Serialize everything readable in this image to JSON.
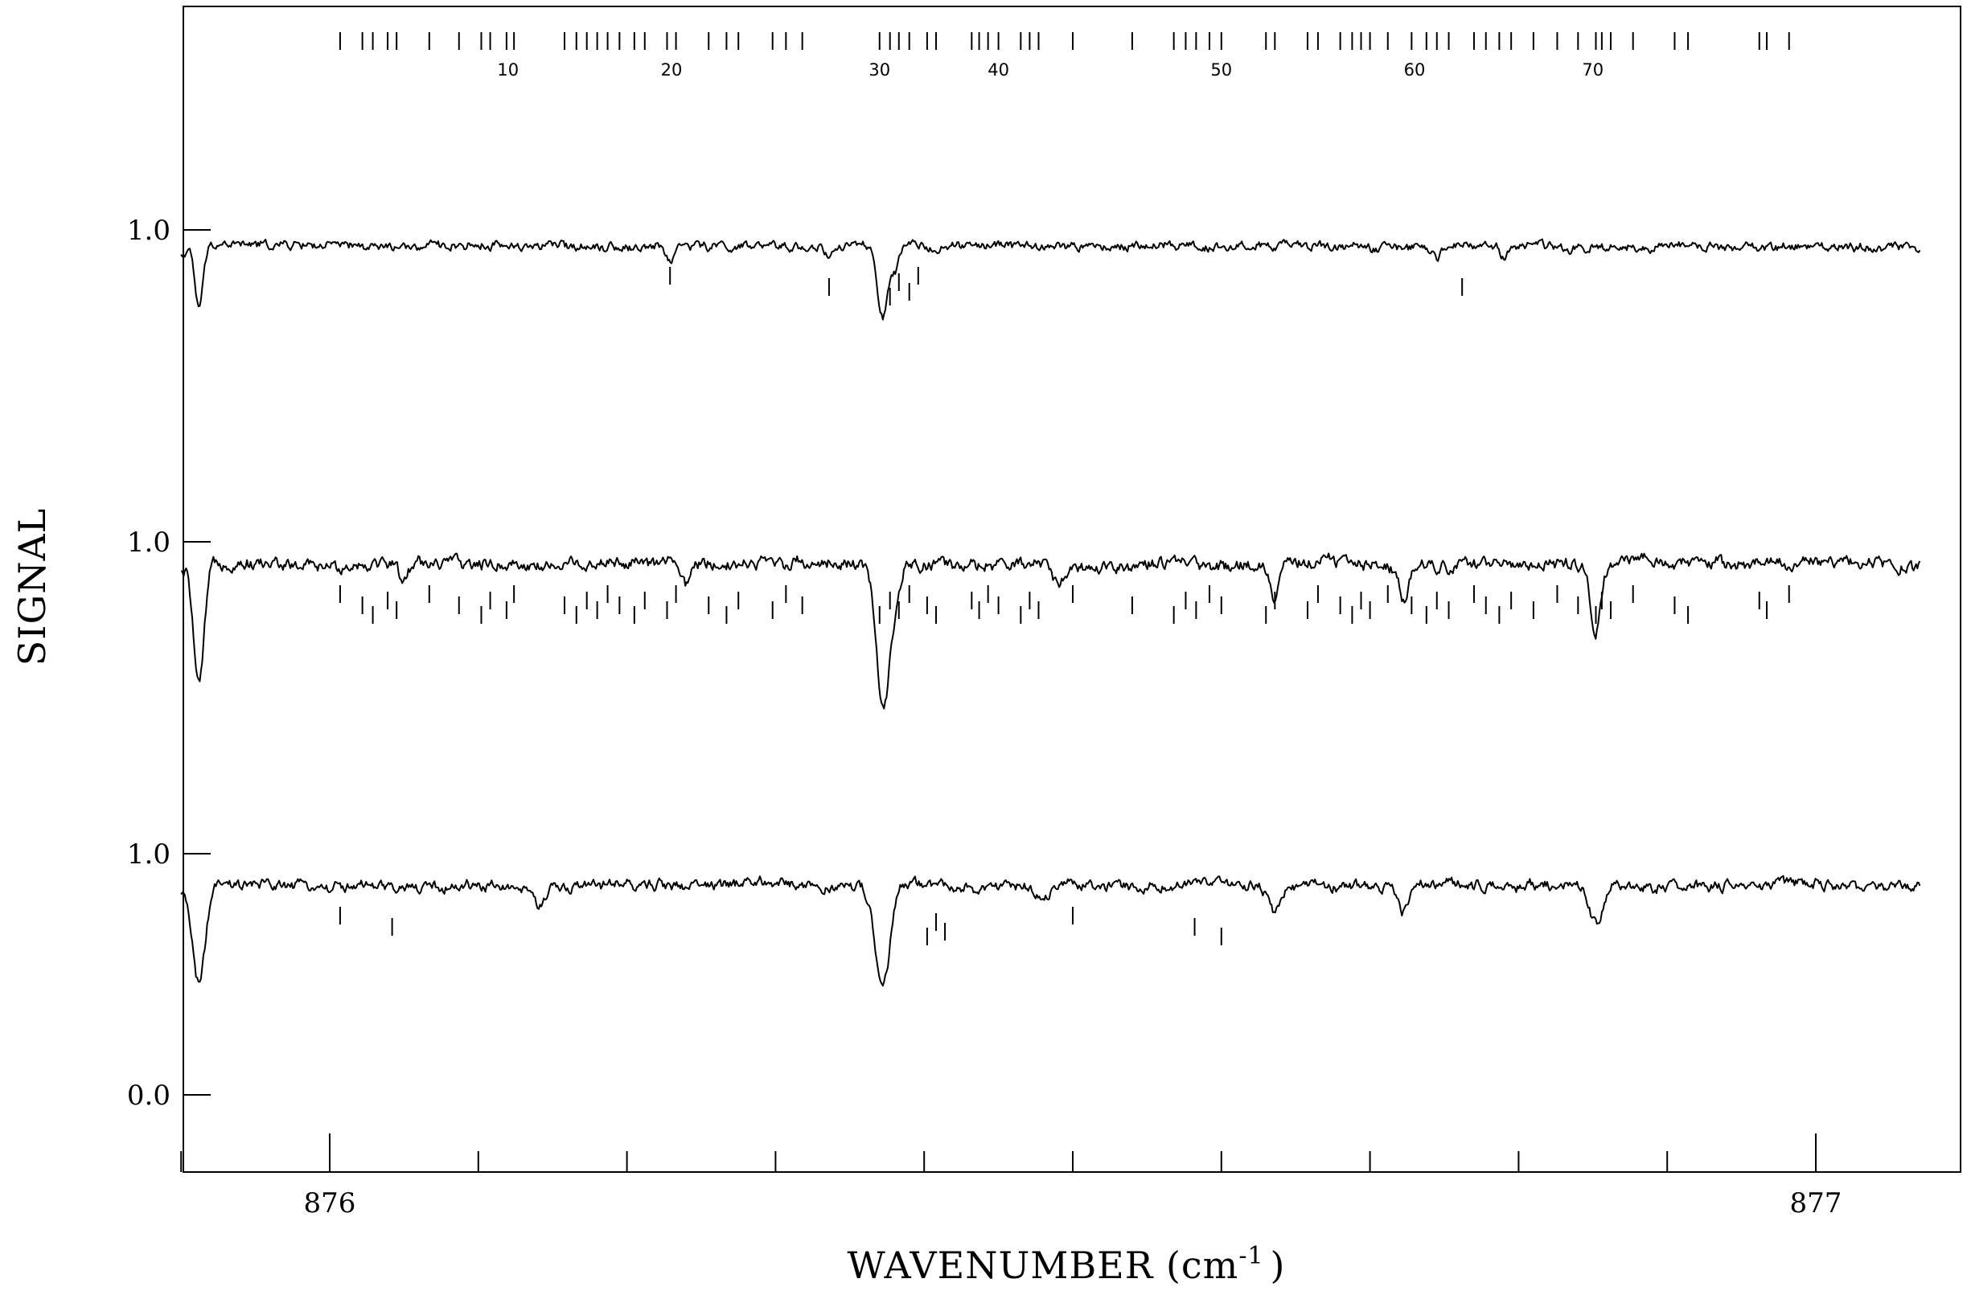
{
  "chart_data": {
    "type": "line",
    "xlabel": "WAVENUMBER (cm",
    "xlabel_sup": "-1",
    "xlabel_end": ")",
    "ylabel": "SIGNAL",
    "xlim": [
      875.85,
      877.1
    ],
    "x_ticks": [
      875.9,
      876.0,
      876.1,
      876.2,
      876.3,
      876.4,
      876.5,
      876.6,
      876.7,
      876.8,
      876.9,
      877.0
    ],
    "x_tick_labels": [
      {
        "value": 876.0,
        "label": "876"
      },
      {
        "value": 877.0,
        "label": "877"
      }
    ],
    "y_tick_labels": [
      {
        "label": "1.0",
        "offset": 3.7
      },
      {
        "label": "1.0",
        "offset": 2.69
      },
      {
        "label": "1.0",
        "offset": 1.72
      },
      {
        "label": "1.0",
        "offset": 0.75
      },
      {
        "label": "0.0",
        "offset": 0.0
      }
    ],
    "line_numbers": [
      {
        "n": 10,
        "x": 876.12
      },
      {
        "n": 20,
        "x": 876.23
      },
      {
        "n": 30,
        "x": 876.37
      },
      {
        "n": 40,
        "x": 876.45
      },
      {
        "n": 50,
        "x": 876.6
      },
      {
        "n": 60,
        "x": 876.73
      },
      {
        "n": 70,
        "x": 876.85
      }
    ],
    "series": [
      {
        "offset": 3.7,
        "baseline": -0.03,
        "noise": 0.004,
        "dips": [],
        "markers": [
          876.007,
          876.022,
          876.029,
          876.039,
          876.045,
          876.067,
          876.087,
          876.102,
          876.108,
          876.119,
          876.124,
          876.158,
          876.166,
          876.173,
          876.18,
          876.187,
          876.195,
          876.205,
          876.212,
          876.227,
          876.233,
          876.255,
          876.267,
          876.275,
          876.298,
          876.307,
          876.318,
          876.37,
          876.377,
          876.383,
          876.39,
          876.402,
          876.408,
          876.432,
          876.437,
          876.443,
          876.45,
          876.465,
          876.471,
          876.477,
          876.5,
          876.54,
          876.568,
          876.576,
          876.583,
          876.592,
          876.6,
          876.63,
          876.636,
          876.658,
          876.665,
          876.68,
          876.688,
          876.694,
          876.7,
          876.712,
          876.728,
          876.738,
          876.745,
          876.753,
          876.77,
          876.778,
          876.787,
          876.795,
          876.81,
          876.826,
          876.84,
          876.852,
          876.856,
          876.862,
          876.877,
          876.905,
          876.914,
          876.962,
          876.967,
          876.982
        ]
      },
      {
        "offset": 2.69,
        "baseline": -0.05,
        "noise": 0.025,
        "dips": [
          {
            "x": 875.912,
            "depth": 0.19,
            "w": 0.004
          },
          {
            "x": 876.229,
            "depth": 0.05,
            "w": 0.004
          },
          {
            "x": 876.336,
            "depth": 0.04,
            "w": 0.003
          },
          {
            "x": 876.372,
            "depth": 0.22,
            "w": 0.005
          },
          {
            "x": 876.38,
            "depth": 0.07,
            "w": 0.004
          },
          {
            "x": 876.745,
            "depth": 0.05,
            "w": 0.003
          },
          {
            "x": 876.79,
            "depth": 0.04,
            "w": 0.003
          },
          {
            "x": 876.845,
            "depth": 0.04,
            "w": 0.003
          }
        ],
        "markers": [
          876.229,
          876.336,
          876.377,
          876.383,
          876.39,
          876.396,
          876.762
        ]
      },
      {
        "offset": 1.72,
        "baseline": -0.07,
        "noise": 0.035,
        "dips": [
          {
            "x": 875.912,
            "depth": 0.38,
            "w": 0.005
          },
          {
            "x": 876.372,
            "depth": 0.45,
            "w": 0.006
          },
          {
            "x": 876.38,
            "depth": 0.12,
            "w": 0.005
          },
          {
            "x": 876.852,
            "depth": 0.2,
            "w": 0.005
          },
          {
            "x": 876.635,
            "depth": 0.1,
            "w": 0.004
          },
          {
            "x": 876.723,
            "depth": 0.1,
            "w": 0.004
          },
          {
            "x": 876.49,
            "depth": 0.06,
            "w": 0.004
          },
          {
            "x": 876.24,
            "depth": 0.08,
            "w": 0.004
          },
          {
            "x": 876.05,
            "depth": 0.06,
            "w": 0.004
          }
        ],
        "markers": [
          876.007,
          876.022,
          876.029,
          876.039,
          876.045,
          876.067,
          876.087,
          876.102,
          876.108,
          876.119,
          876.124,
          876.158,
          876.166,
          876.173,
          876.18,
          876.187,
          876.195,
          876.205,
          876.212,
          876.227,
          876.233,
          876.255,
          876.267,
          876.275,
          876.298,
          876.307,
          876.318,
          876.37,
          876.377,
          876.383,
          876.39,
          876.402,
          876.408,
          876.432,
          876.437,
          876.443,
          876.45,
          876.465,
          876.471,
          876.477,
          876.5,
          876.54,
          876.568,
          876.576,
          876.583,
          876.592,
          876.6,
          876.63,
          876.636,
          876.658,
          876.665,
          876.68,
          876.688,
          876.694,
          876.7,
          876.712,
          876.728,
          876.738,
          876.745,
          876.753,
          876.77,
          876.778,
          876.787,
          876.795,
          876.81,
          876.826,
          876.84,
          876.852,
          876.856,
          876.862,
          876.877,
          876.905,
          876.914,
          876.962,
          876.967,
          876.982
        ]
      },
      {
        "offset": 0.75,
        "baseline": -0.1,
        "noise": 0.03,
        "dips": [
          {
            "x": 875.912,
            "depth": 0.3,
            "w": 0.006
          },
          {
            "x": 876.372,
            "depth": 0.32,
            "w": 0.007
          },
          {
            "x": 876.852,
            "depth": 0.12,
            "w": 0.006
          },
          {
            "x": 876.635,
            "depth": 0.08,
            "w": 0.005
          },
          {
            "x": 876.723,
            "depth": 0.09,
            "w": 0.005
          },
          {
            "x": 876.48,
            "depth": 0.04,
            "w": 0.005
          },
          {
            "x": 876.14,
            "depth": 0.05,
            "w": 0.006
          }
        ],
        "markers": [
          876.007,
          876.042,
          876.402,
          876.408,
          876.414,
          876.5,
          876.582,
          876.6
        ]
      }
    ]
  }
}
